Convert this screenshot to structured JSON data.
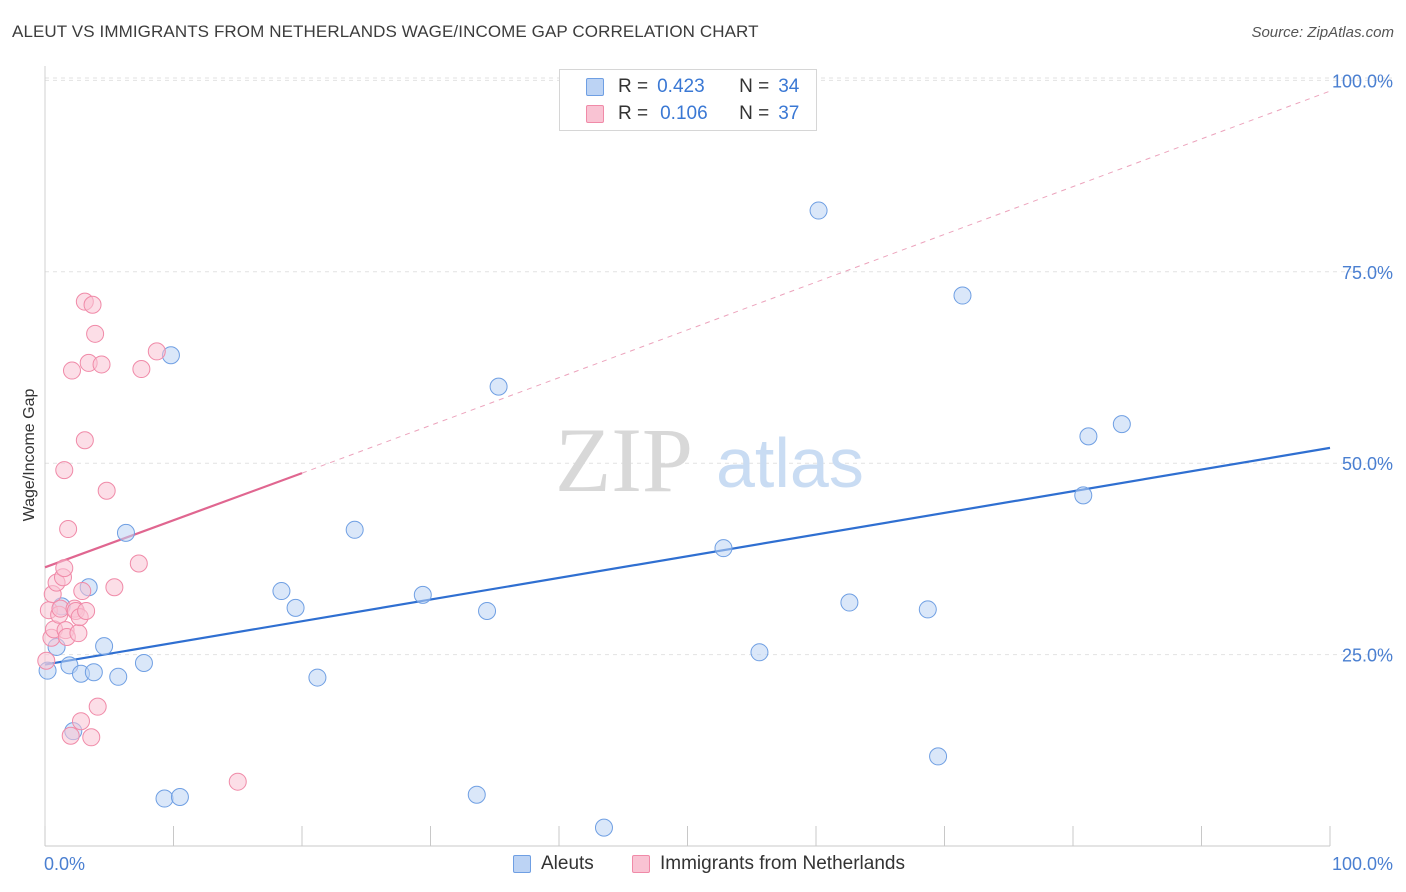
{
  "title": "ALEUT VS IMMIGRANTS FROM NETHERLANDS WAGE/INCOME GAP CORRELATION CHART",
  "source": "Source: ZipAtlas.com",
  "watermark": {
    "zip": "ZIP",
    "atlas": "atlas"
  },
  "legend": {
    "r_label": "R =",
    "n_label": "N =",
    "rows": [
      {
        "r": "0.423",
        "n": "34",
        "color": "#6f9fe3"
      },
      {
        "r": "0.106",
        "n": "37",
        "color": "#f08aa8"
      }
    ]
  },
  "bottom_legend": [
    "Aleuts",
    "Immigrants from Netherlands"
  ],
  "chart_data": {
    "type": "scatter",
    "title": "ALEUT VS IMMIGRANTS FROM NETHERLANDS WAGE/INCOME GAP CORRELATION CHART",
    "xlabel": "",
    "ylabel": "Wage/Income Gap",
    "xlim": [
      0,
      100
    ],
    "ylim": [
      0,
      100
    ],
    "x_tick_labels": [
      "0.0%",
      "100.0%"
    ],
    "y_ticks": [
      25,
      50,
      75,
      100
    ],
    "y_tick_labels": [
      "25.0%",
      "50.0%",
      "75.0%",
      "100.0%"
    ],
    "grid": true,
    "legend_position": "top-center",
    "series": [
      {
        "name": "Aleuts",
        "color": "#6f9fe3",
        "fill": "#bcd3f4",
        "points": [
          [
            0.2,
            22.9
          ],
          [
            0.9,
            26.0
          ],
          [
            1.3,
            31.3
          ],
          [
            1.9,
            23.6
          ],
          [
            2.2,
            15.0
          ],
          [
            2.8,
            22.5
          ],
          [
            3.4,
            33.8
          ],
          [
            3.8,
            22.7
          ],
          [
            4.6,
            26.1
          ],
          [
            5.7,
            22.1
          ],
          [
            6.3,
            40.9
          ],
          [
            7.7,
            23.9
          ],
          [
            9.3,
            6.2
          ],
          [
            9.8,
            64.1
          ],
          [
            10.5,
            6.4
          ],
          [
            18.4,
            33.3
          ],
          [
            19.5,
            31.1
          ],
          [
            21.2,
            22.0
          ],
          [
            24.1,
            41.3
          ],
          [
            29.4,
            32.8
          ],
          [
            33.6,
            6.7
          ],
          [
            34.4,
            30.7
          ],
          [
            35.3,
            60.0
          ],
          [
            43.5,
            2.4
          ],
          [
            52.8,
            38.9
          ],
          [
            55.6,
            25.3
          ],
          [
            60.2,
            83.0
          ],
          [
            62.6,
            31.8
          ],
          [
            68.7,
            30.9
          ],
          [
            69.5,
            11.7
          ],
          [
            71.4,
            71.9
          ],
          [
            80.8,
            45.8
          ],
          [
            81.2,
            53.5
          ],
          [
            83.8,
            55.1
          ]
        ]
      },
      {
        "name": "Immigrants from Netherlands",
        "color": "#f08aa8",
        "fill": "#f9c3d3",
        "points": [
          [
            0.1,
            24.2
          ],
          [
            0.3,
            30.8
          ],
          [
            0.5,
            27.2
          ],
          [
            0.6,
            32.9
          ],
          [
            0.7,
            28.3
          ],
          [
            0.9,
            34.4
          ],
          [
            1.1,
            30.2
          ],
          [
            1.2,
            31.0
          ],
          [
            1.4,
            35.1
          ],
          [
            1.5,
            36.3
          ],
          [
            1.6,
            28.2
          ],
          [
            1.7,
            27.3
          ],
          [
            1.5,
            49.1
          ],
          [
            1.8,
            41.4
          ],
          [
            2.0,
            14.4
          ],
          [
            2.1,
            62.1
          ],
          [
            2.3,
            31.0
          ],
          [
            2.4,
            30.7
          ],
          [
            2.6,
            27.8
          ],
          [
            2.7,
            29.9
          ],
          [
            2.8,
            16.3
          ],
          [
            2.9,
            33.3
          ],
          [
            3.1,
            53.0
          ],
          [
            3.1,
            71.1
          ],
          [
            3.2,
            30.7
          ],
          [
            3.4,
            63.1
          ],
          [
            3.6,
            14.2
          ],
          [
            3.7,
            70.7
          ],
          [
            3.9,
            66.9
          ],
          [
            4.1,
            18.2
          ],
          [
            4.4,
            62.9
          ],
          [
            4.8,
            46.4
          ],
          [
            5.4,
            33.8
          ],
          [
            7.3,
            36.9
          ],
          [
            7.5,
            62.3
          ],
          [
            8.7,
            64.6
          ],
          [
            15.0,
            8.4
          ]
        ]
      }
    ],
    "trend_lines": [
      {
        "series": "Aleuts",
        "x": [
          0,
          100
        ],
        "y": [
          23.7,
          52.0
        ],
        "style": "solid"
      },
      {
        "series": "Immigrants from Netherlands",
        "x": [
          0,
          20
        ],
        "y": [
          36.4,
          48.7
        ],
        "style": "solid"
      },
      {
        "series": "Immigrants from Netherlands",
        "x": [
          20,
          100
        ],
        "y": [
          48.7,
          98.6
        ],
        "style": "dashed"
      }
    ]
  }
}
